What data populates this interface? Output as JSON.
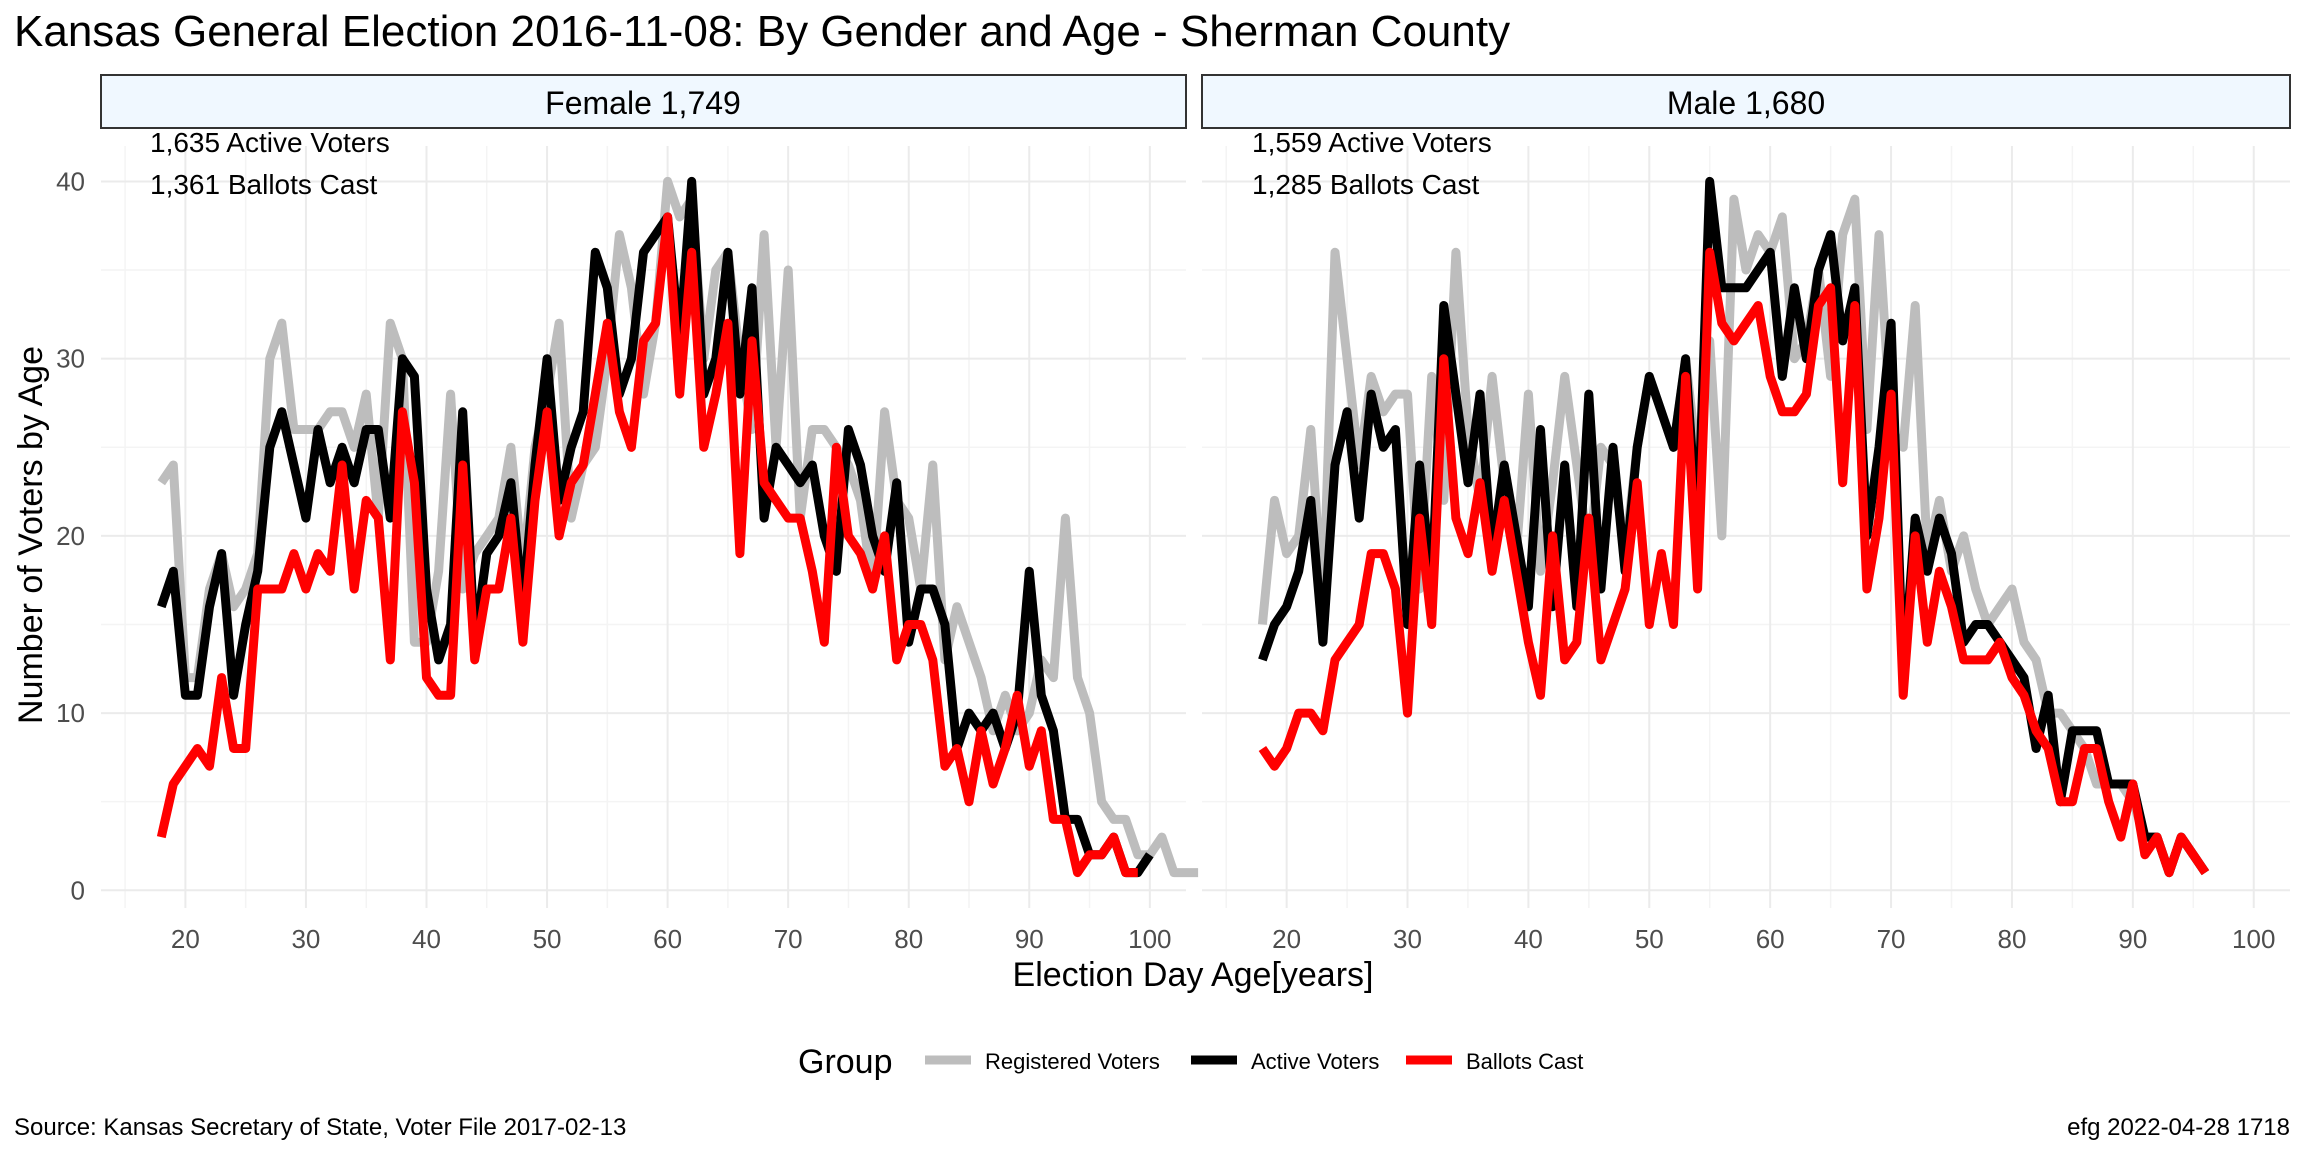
{
  "title": "Kansas General Election 2016-11-08:  By Gender and Age - Sherman County",
  "xlabel": "Election Day Age[years]",
  "ylabel": "Number of Voters by Age",
  "source": "Source:  Kansas Secretary of State, Voter File  2017-02-13",
  "credit": "efg 2022-04-28 1718",
  "legend": {
    "title": "Group",
    "items": [
      {
        "label": "Registered Voters",
        "color": "#bdbdbd"
      },
      {
        "label": "Active Voters",
        "color": "#000000"
      },
      {
        "label": "Ballots Cast",
        "color": "#ff0000"
      }
    ]
  },
  "colors": {
    "registered": "#bdbdbd",
    "active": "#000000",
    "ballots": "#ff0000",
    "strip_fill": "#f0f8ff",
    "grid": "#ebebeb"
  },
  "chart_data": [
    {
      "type": "line",
      "panel": "Female 1,749",
      "annotations": [
        "1,635 Active Voters",
        "1,361 Ballots Cast"
      ],
      "xlim": [
        13,
        103
      ],
      "ylim": [
        -1,
        42
      ],
      "x_ticks": [
        20,
        30,
        40,
        50,
        60,
        70,
        80,
        90,
        100
      ],
      "y_ticks": [
        0,
        10,
        20,
        30,
        40
      ],
      "x_start": 18,
      "series": [
        {
          "name": "Registered Voters",
          "x_start": 18,
          "values": [
            23,
            24,
            12,
            12,
            17,
            19,
            16,
            17,
            19,
            30,
            32,
            26,
            26,
            26,
            27,
            27,
            25,
            28,
            21,
            32,
            30,
            14,
            14,
            18,
            28,
            17,
            19,
            20,
            21,
            25,
            18,
            25,
            28,
            32,
            21,
            24,
            25,
            30,
            37,
            34,
            28,
            32,
            40,
            38,
            39,
            30,
            35,
            36,
            30,
            26,
            37,
            25,
            35,
            21,
            26,
            26,
            25,
            24,
            22,
            17,
            27,
            22,
            21,
            17,
            24,
            13,
            16,
            14,
            12,
            9,
            11,
            9,
            10,
            13,
            12,
            21,
            12,
            10,
            5,
            4,
            4,
            2,
            2,
            3,
            1,
            1,
            1
          ]
        },
        {
          "name": "Active Voters",
          "x_start": 18,
          "values": [
            16,
            18,
            11,
            11,
            16,
            19,
            11,
            15,
            18,
            25,
            27,
            24,
            21,
            26,
            23,
            25,
            23,
            26,
            26,
            21,
            30,
            29,
            17,
            13,
            15,
            27,
            14,
            19,
            20,
            23,
            16,
            24,
            30,
            22,
            25,
            27,
            36,
            34,
            28,
            30,
            36,
            37,
            38,
            31,
            40,
            28,
            30,
            36,
            28,
            34,
            21,
            25,
            24,
            23,
            24,
            20,
            18,
            26,
            24,
            20,
            18,
            23,
            14,
            17,
            17,
            15,
            8,
            10,
            9,
            10,
            8,
            10,
            18,
            11,
            9,
            4,
            4,
            2,
            2,
            3,
            1,
            1,
            2
          ]
        },
        {
          "name": "Ballots Cast",
          "x_start": 18,
          "values": [
            3,
            6,
            7,
            8,
            7,
            12,
            8,
            8,
            17,
            17,
            17,
            19,
            17,
            19,
            18,
            24,
            17,
            22,
            21,
            13,
            27,
            23,
            12,
            11,
            11,
            24,
            13,
            17,
            17,
            21,
            14,
            22,
            27,
            20,
            23,
            24,
            28,
            32,
            27,
            25,
            31,
            32,
            38,
            28,
            36,
            25,
            28,
            32,
            19,
            31,
            23,
            22,
            21,
            21,
            18,
            14,
            25,
            20,
            19,
            17,
            20,
            13,
            15,
            15,
            13,
            7,
            8,
            5,
            9,
            6,
            8,
            11,
            7,
            9,
            4,
            4,
            1,
            2,
            2,
            3,
            1,
            1
          ]
        }
      ]
    },
    {
      "type": "line",
      "panel": "Male 1,680",
      "annotations": [
        "1,559 Active Voters",
        "1,285 Ballots Cast"
      ],
      "xlim": [
        13,
        103
      ],
      "ylim": [
        -1,
        42
      ],
      "x_ticks": [
        20,
        30,
        40,
        50,
        60,
        70,
        80,
        90,
        100
      ],
      "y_ticks": [
        0,
        10,
        20,
        30,
        40
      ],
      "series": [
        {
          "name": "Registered Voters",
          "x_start": 18,
          "values": [
            15,
            22,
            19,
            20,
            26,
            16,
            36,
            30,
            24,
            29,
            27,
            28,
            28,
            17,
            29,
            22,
            36,
            26,
            22,
            29,
            23,
            19,
            28,
            18,
            23,
            29,
            24,
            19,
            25,
            24,
            19,
            25,
            29,
            27,
            25,
            30,
            24,
            31,
            20,
            39,
            35,
            37,
            36,
            38,
            30,
            31,
            35,
            29,
            37,
            39,
            26,
            37,
            26,
            25,
            33,
            19,
            22,
            18,
            20,
            17,
            15,
            16,
            17,
            14,
            13,
            10,
            10,
            9,
            8,
            6,
            6,
            6,
            5,
            3,
            3,
            1,
            3,
            2,
            1
          ]
        },
        {
          "name": "Active Voters",
          "x_start": 18,
          "values": [
            13,
            15,
            16,
            18,
            22,
            14,
            24,
            27,
            21,
            28,
            25,
            26,
            15,
            24,
            17,
            33,
            28,
            23,
            28,
            19,
            24,
            20,
            16,
            26,
            16,
            24,
            16,
            28,
            17,
            25,
            18,
            25,
            29,
            27,
            25,
            30,
            20,
            40,
            34,
            34,
            34,
            35,
            36,
            29,
            34,
            30,
            35,
            37,
            31,
            34,
            20,
            25,
            32,
            12,
            21,
            18,
            21,
            19,
            14,
            15,
            15,
            14,
            13,
            12,
            8,
            11,
            5,
            9,
            9,
            9,
            6,
            6,
            6,
            3,
            3,
            1,
            3,
            2,
            1
          ]
        },
        {
          "name": "Ballots Cast",
          "x_start": 18,
          "values": [
            8,
            7,
            8,
            10,
            10,
            9,
            13,
            14,
            15,
            19,
            19,
            17,
            10,
            21,
            15,
            30,
            21,
            19,
            23,
            18,
            22,
            18,
            14,
            11,
            20,
            13,
            14,
            21,
            13,
            15,
            17,
            23,
            15,
            19,
            15,
            29,
            17,
            36,
            32,
            31,
            32,
            33,
            29,
            27,
            27,
            28,
            33,
            34,
            23,
            33,
            17,
            21,
            28,
            11,
            20,
            14,
            18,
            16,
            13,
            13,
            13,
            14,
            12,
            11,
            9,
            8,
            5,
            5,
            8,
            8,
            5,
            3,
            6,
            2,
            3,
            1,
            3,
            2,
            1
          ]
        }
      ]
    }
  ]
}
